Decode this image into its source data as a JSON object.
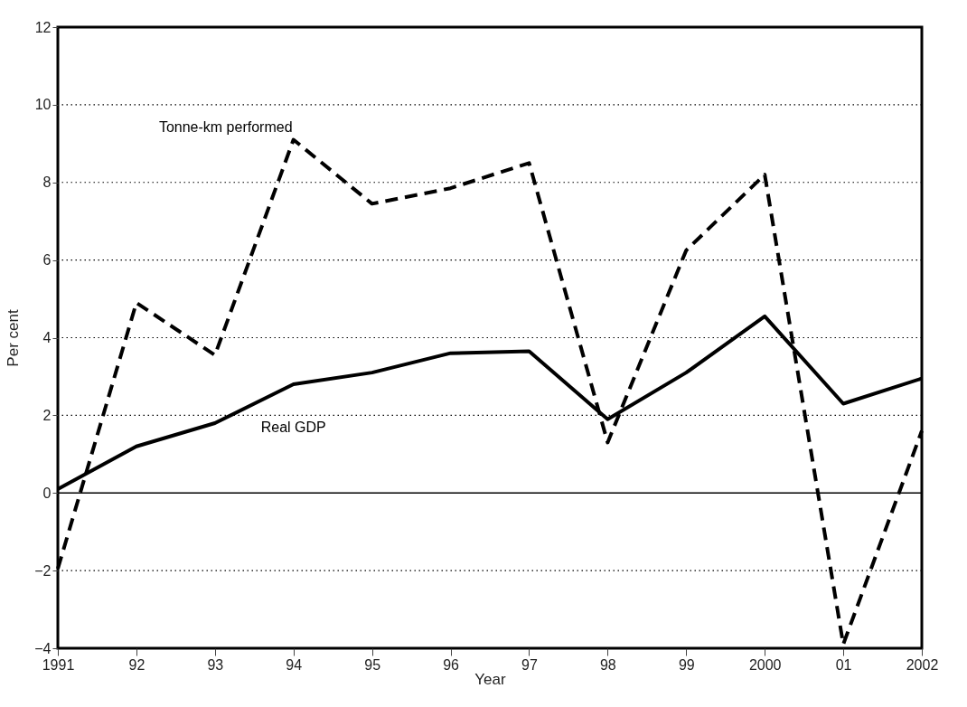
{
  "chart_data": {
    "type": "line",
    "xlabel": "Year",
    "ylabel": "Per cent",
    "categories": [
      "1991",
      "92",
      "93",
      "94",
      "95",
      "96",
      "97",
      "98",
      "99",
      "2000",
      "01",
      "2002"
    ],
    "series": [
      {
        "name": "Tonne-km performed",
        "color": "#000000",
        "line_style": "dashed",
        "values": [
          -1.95,
          4.9,
          3.55,
          9.1,
          7.45,
          7.85,
          8.5,
          1.3,
          6.25,
          8.2,
          -3.9,
          1.6
        ]
      },
      {
        "name": "Real GDP",
        "color": "#000000",
        "line_style": "solid",
        "values": [
          0.1,
          1.2,
          1.8,
          2.8,
          3.1,
          3.6,
          3.65,
          1.9,
          3.1,
          4.55,
          2.3,
          2.95
        ]
      }
    ],
    "ylim": [
      -4,
      12
    ],
    "yticks": [
      -4,
      -2,
      0,
      2,
      4,
      6,
      8,
      10,
      12
    ],
    "grid": "y",
    "marker": "none",
    "ref_lines": [
      {
        "axis": "y",
        "value": 0,
        "color": "#000000",
        "line_style": "solid"
      }
    ]
  }
}
